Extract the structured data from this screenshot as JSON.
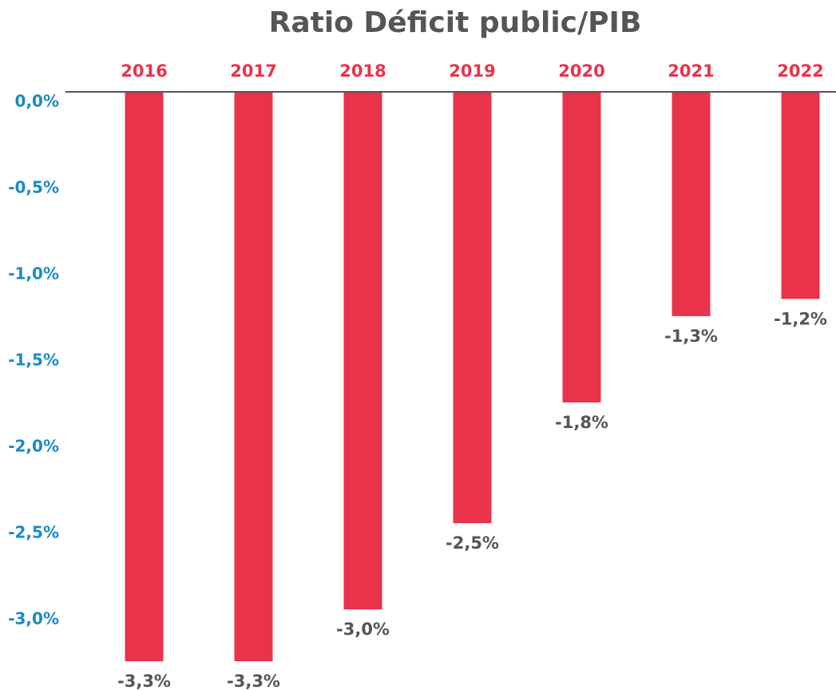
{
  "chart_data": {
    "type": "bar",
    "title": "Ratio Déficit public/PIB",
    "categories": [
      "2016",
      "2017",
      "2018",
      "2019",
      "2020",
      "2021",
      "2022"
    ],
    "values": [
      -3.3,
      -3.3,
      -3.0,
      -2.5,
      -1.8,
      -1.3,
      -1.2
    ],
    "value_labels": [
      "-3,3%",
      "-3,3%",
      "-3,0%",
      "-2,5%",
      "-1,8%",
      "-1,3%",
      "-1,2%"
    ],
    "color": "#e8334a",
    "ylim": [
      -3.3,
      0
    ],
    "yticks": [
      {
        "value": 0,
        "label": "0,0%"
      },
      {
        "value": -0.5,
        "label": "-0,5%"
      },
      {
        "value": -1.0,
        "label": "-1,0%"
      },
      {
        "value": -1.5,
        "label": "-1,5%"
      },
      {
        "value": -2.0,
        "label": "-2,0%"
      },
      {
        "value": -2.5,
        "label": "-2,5%"
      },
      {
        "value": -3.0,
        "label": "-3,0%"
      }
    ],
    "grid": false
  }
}
